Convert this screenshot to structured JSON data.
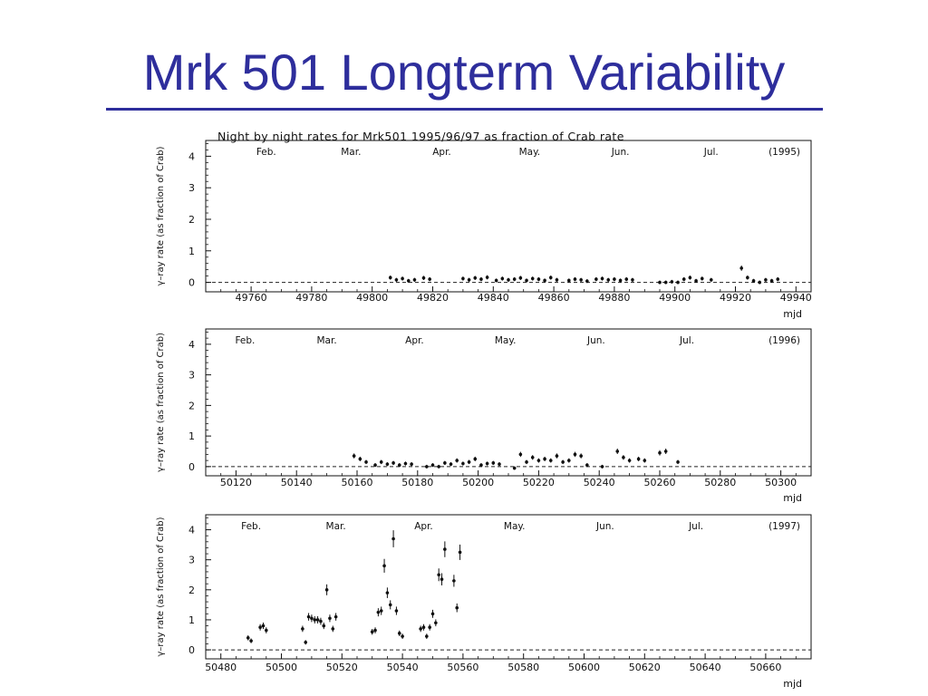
{
  "slide": {
    "title": "Mrk 501 Longterm Variability"
  },
  "figure": {
    "caption": "Night by night rates for Mrk501 1995/96/97 as fraction of Crab rate"
  },
  "chart_data": [
    {
      "type": "scatter",
      "year_label": "(1995)",
      "xlabel": "mjd",
      "ylabel": "γ–ray rate (as fraction of Crab)",
      "xlim": [
        49745,
        49945
      ],
      "ylim": [
        -0.3,
        4.5
      ],
      "xticks": [
        49760,
        49780,
        49800,
        49820,
        49840,
        49860,
        49880,
        49900,
        49920,
        49940
      ],
      "yticks": [
        0,
        1,
        2,
        3,
        4
      ],
      "months": [
        {
          "label": "Feb.",
          "x": 49765
        },
        {
          "label": "Mar.",
          "x": 49793
        },
        {
          "label": "Apr.",
          "x": 49823
        },
        {
          "label": "May.",
          "x": 49852
        },
        {
          "label": "Jun.",
          "x": 49882
        },
        {
          "label": "Jul.",
          "x": 49912
        }
      ],
      "points": [
        [
          49806,
          0.15
        ],
        [
          49808,
          0.08
        ],
        [
          49810,
          0.12
        ],
        [
          49812,
          0.05
        ],
        [
          49814,
          0.08
        ],
        [
          49817,
          0.14
        ],
        [
          49819,
          0.1
        ],
        [
          49830,
          0.12
        ],
        [
          49832,
          0.08
        ],
        [
          49834,
          0.14
        ],
        [
          49836,
          0.1
        ],
        [
          49838,
          0.16
        ],
        [
          49841,
          0.06
        ],
        [
          49843,
          0.12
        ],
        [
          49845,
          0.08
        ],
        [
          49847,
          0.1
        ],
        [
          49849,
          0.14
        ],
        [
          49851,
          0.06
        ],
        [
          49853,
          0.12
        ],
        [
          49855,
          0.1
        ],
        [
          49857,
          0.06
        ],
        [
          49859,
          0.15
        ],
        [
          49861,
          0.08
        ],
        [
          49865,
          0.06
        ],
        [
          49867,
          0.1
        ],
        [
          49869,
          0.08
        ],
        [
          49871,
          0.04
        ],
        [
          49874,
          0.1
        ],
        [
          49876,
          0.12
        ],
        [
          49878,
          0.08
        ],
        [
          49880,
          0.1
        ],
        [
          49882,
          0.06
        ],
        [
          49884,
          0.1
        ],
        [
          49886,
          0.08
        ],
        [
          49895,
          0.0
        ],
        [
          49897,
          0.0
        ],
        [
          49899,
          0.02
        ],
        [
          49901,
          0.0
        ],
        [
          49903,
          0.1
        ],
        [
          49905,
          0.15
        ],
        [
          49907,
          0.05
        ],
        [
          49909,
          0.12
        ],
        [
          49912,
          0.08
        ],
        [
          49922,
          0.45
        ],
        [
          49924,
          0.15
        ],
        [
          49926,
          0.05
        ],
        [
          49928,
          0.0
        ],
        [
          49930,
          0.08
        ],
        [
          49932,
          0.05
        ],
        [
          49934,
          0.1
        ]
      ]
    },
    {
      "type": "scatter",
      "year_label": "(1996)",
      "xlabel": "mjd",
      "ylabel": "γ–ray rate (as fraction of Crab)",
      "xlim": [
        50110,
        50310
      ],
      "ylim": [
        -0.3,
        4.5
      ],
      "xticks": [
        50120,
        50140,
        50160,
        50180,
        50200,
        50220,
        50240,
        50260,
        50280,
        50300
      ],
      "yticks": [
        0,
        1,
        2,
        3,
        4
      ],
      "months": [
        {
          "label": "Feb.",
          "x": 50123
        },
        {
          "label": "Mar.",
          "x": 50150
        },
        {
          "label": "Apr.",
          "x": 50179
        },
        {
          "label": "May.",
          "x": 50209
        },
        {
          "label": "Jun.",
          "x": 50239
        },
        {
          "label": "Jul.",
          "x": 50269
        }
      ],
      "points": [
        [
          50159,
          0.35
        ],
        [
          50161,
          0.25
        ],
        [
          50163,
          0.15
        ],
        [
          50166,
          0.05
        ],
        [
          50168,
          0.15
        ],
        [
          50170,
          0.08
        ],
        [
          50172,
          0.12
        ],
        [
          50174,
          0.05
        ],
        [
          50176,
          0.1
        ],
        [
          50178,
          0.08
        ],
        [
          50183,
          0.0
        ],
        [
          50185,
          0.05
        ],
        [
          50187,
          0.0
        ],
        [
          50189,
          0.12
        ],
        [
          50191,
          0.08
        ],
        [
          50193,
          0.2
        ],
        [
          50195,
          0.1
        ],
        [
          50197,
          0.15
        ],
        [
          50199,
          0.25
        ],
        [
          50201,
          0.05
        ],
        [
          50203,
          0.1
        ],
        [
          50205,
          0.12
        ],
        [
          50207,
          0.08
        ],
        [
          50212,
          -0.05
        ],
        [
          50214,
          0.4
        ],
        [
          50216,
          0.15
        ],
        [
          50218,
          0.3
        ],
        [
          50220,
          0.2
        ],
        [
          50222,
          0.25
        ],
        [
          50224,
          0.2
        ],
        [
          50226,
          0.35
        ],
        [
          50228,
          0.15
        ],
        [
          50230,
          0.2
        ],
        [
          50232,
          0.4
        ],
        [
          50234,
          0.35
        ],
        [
          50236,
          0.05
        ],
        [
          50241,
          0.0
        ],
        [
          50246,
          0.5
        ],
        [
          50248,
          0.3
        ],
        [
          50250,
          0.2
        ],
        [
          50253,
          0.25
        ],
        [
          50255,
          0.2
        ],
        [
          50260,
          0.45
        ],
        [
          50262,
          0.5
        ],
        [
          50266,
          0.15
        ]
      ]
    },
    {
      "type": "scatter",
      "year_label": "(1997)",
      "xlabel": "mjd",
      "ylabel": "γ–ray rate (as fraction of Crab)",
      "xlim": [
        50475,
        50675
      ],
      "ylim": [
        -0.3,
        4.5
      ],
      "xticks": [
        50480,
        50500,
        50520,
        50540,
        50560,
        50580,
        50600,
        50620,
        50640,
        50660
      ],
      "yticks": [
        0,
        1,
        2,
        3,
        4
      ],
      "months": [
        {
          "label": "Feb.",
          "x": 50490
        },
        {
          "label": "Mar.",
          "x": 50518
        },
        {
          "label": "Apr.",
          "x": 50547
        },
        {
          "label": "May.",
          "x": 50577
        },
        {
          "label": "Jun.",
          "x": 50607
        },
        {
          "label": "Jul.",
          "x": 50637
        }
      ],
      "points": [
        [
          50489,
          0.4
        ],
        [
          50490,
          0.3
        ],
        [
          50493,
          0.75
        ],
        [
          50494,
          0.8
        ],
        [
          50495,
          0.65
        ],
        [
          50507,
          0.7
        ],
        [
          50508,
          0.25
        ],
        [
          50509,
          1.1
        ],
        [
          50510,
          1.05
        ],
        [
          50511,
          1.0
        ],
        [
          50512,
          1.0
        ],
        [
          50513,
          0.95
        ],
        [
          50514,
          0.8
        ],
        [
          50515,
          2.0
        ],
        [
          50516,
          1.05
        ],
        [
          50517,
          0.7
        ],
        [
          50518,
          1.1
        ],
        [
          50530,
          0.6
        ],
        [
          50531,
          0.65
        ],
        [
          50532,
          1.25
        ],
        [
          50533,
          1.3
        ],
        [
          50534,
          2.8
        ],
        [
          50535,
          1.9
        ],
        [
          50536,
          1.5
        ],
        [
          50537,
          3.7
        ],
        [
          50538,
          1.3
        ],
        [
          50539,
          0.55
        ],
        [
          50540,
          0.45
        ],
        [
          50546,
          0.7
        ],
        [
          50547,
          0.75
        ],
        [
          50548,
          0.45
        ],
        [
          50549,
          0.75
        ],
        [
          50550,
          1.2
        ],
        [
          50551,
          0.9
        ],
        [
          50552,
          2.5
        ],
        [
          50553,
          2.35
        ],
        [
          50554,
          3.35
        ],
        [
          50557,
          2.3
        ],
        [
          50558,
          1.4
        ],
        [
          50559,
          3.25
        ]
      ]
    }
  ]
}
